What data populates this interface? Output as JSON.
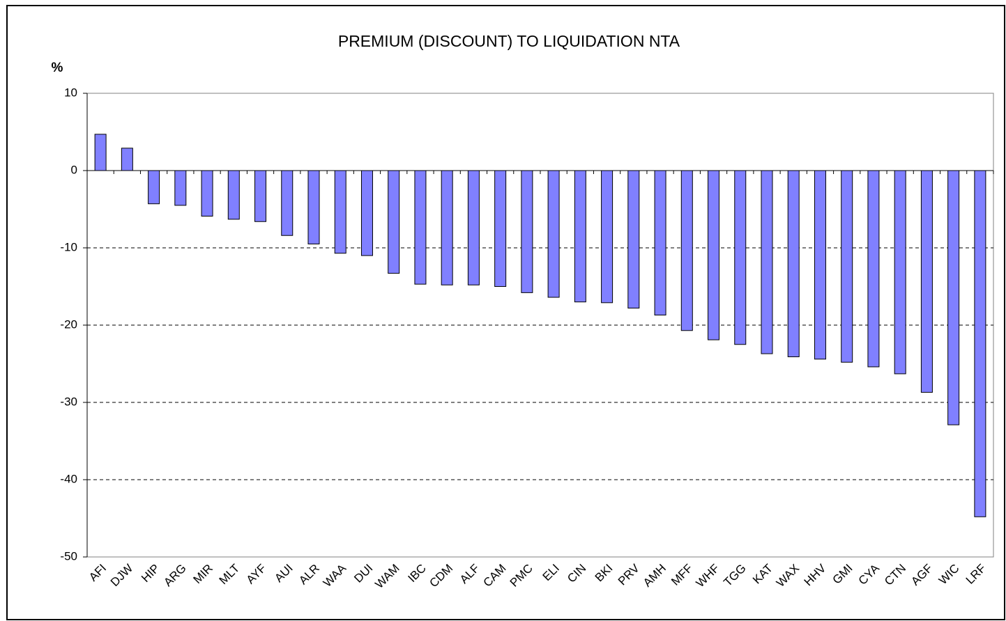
{
  "chart_data": {
    "type": "bar",
    "title": "PREMIUM (DISCOUNT) TO LIQUIDATION NTA",
    "y_label": "%",
    "categories": [
      "AFI",
      "DJW",
      "HIP",
      "ARG",
      "MIR",
      "MLT",
      "AYF",
      "AUI",
      "ALR",
      "WAA",
      "DUI",
      "WAM",
      "IBC",
      "CDM",
      "ALF",
      "CAM",
      "PMC",
      "ELI",
      "CIN",
      "BKI",
      "PRV",
      "AMH",
      "MFF",
      "WHF",
      "TGG",
      "KAT",
      "WAX",
      "HHV",
      "GMI",
      "CYA",
      "CTN",
      "AGF",
      "WIC",
      "LRF"
    ],
    "values": [
      4.7,
      2.9,
      -4.3,
      -4.5,
      -5.9,
      -6.3,
      -6.6,
      -8.4,
      -9.5,
      -10.7,
      -11.0,
      -13.3,
      -14.7,
      -14.8,
      -14.8,
      -15.0,
      -15.8,
      -16.4,
      -17.0,
      -17.1,
      -17.8,
      -18.7,
      -20.7,
      -21.9,
      -22.5,
      -23.7,
      -24.1,
      -24.4,
      -24.8,
      -25.4,
      -26.3,
      -28.7,
      -32.9,
      -44.8
    ],
    "color": "#8080ff",
    "ylim": [
      -50,
      10
    ],
    "yticks": [
      10,
      0,
      -10,
      -20,
      -30,
      -40,
      -50
    ],
    "grid": true
  }
}
